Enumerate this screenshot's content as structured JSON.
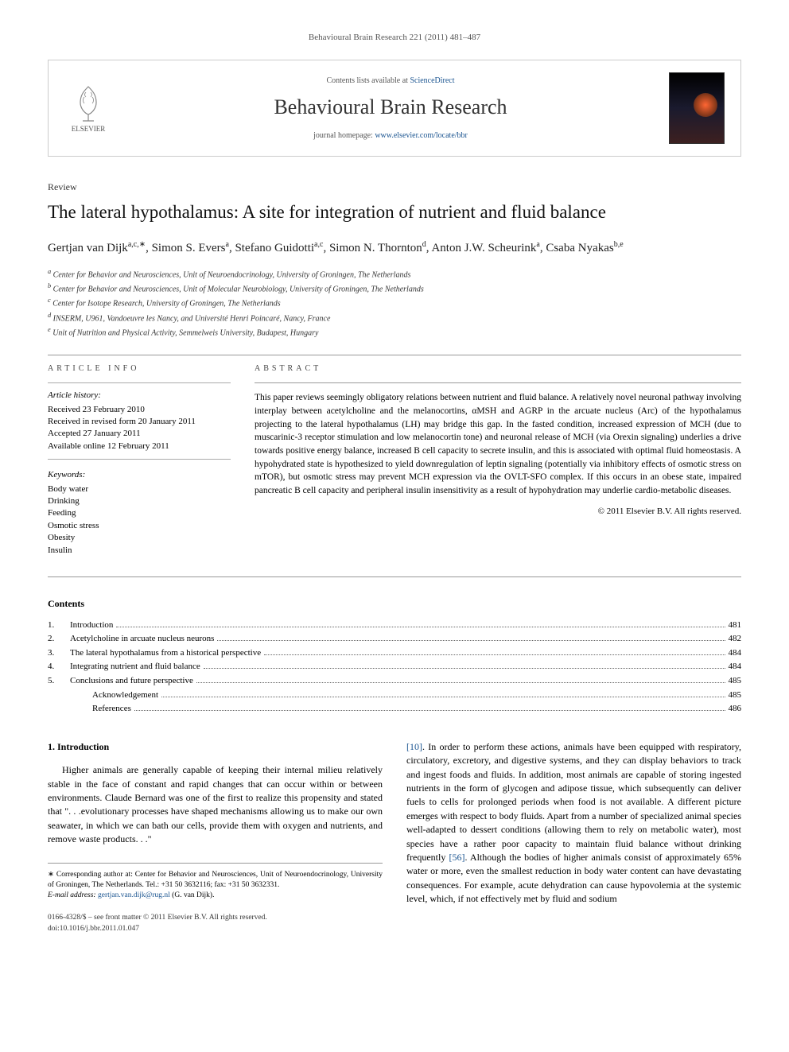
{
  "journal_ref": "Behavioural Brain Research 221 (2011) 481–487",
  "header": {
    "elsevier_label": "ELSEVIER",
    "contents_available": "Contents lists available at ",
    "sciencedirect": "ScienceDirect",
    "journal_title": "Behavioural Brain Research",
    "homepage_label": "journal homepage: ",
    "homepage_url": "www.elsevier.com/locate/bbr"
  },
  "article": {
    "type": "Review",
    "title": "The lateral hypothalamus: A site for integration of nutrient and fluid balance",
    "authors_html": "Gertjan van Dijk<sup>a,c,∗</sup>, Simon S. Evers<sup>a</sup>, Stefano Guidotti<sup>a,c</sup>, Simon N. Thornton<sup>d</sup>, Anton J.W. Scheurink<sup>a</sup>, Csaba Nyakas<sup>b,e</sup>",
    "affiliations": [
      "a Center for Behavior and Neurosciences, Unit of Neuroendocrinology, University of Groningen, The Netherlands",
      "b Center for Behavior and Neurosciences, Unit of Molecular Neurobiology, University of Groningen, The Netherlands",
      "c Center for Isotope Research, University of Groningen, The Netherlands",
      "d INSERM, U961, Vandoeuvre les Nancy, and Université Henri Poincaré, Nancy, France",
      "e Unit of Nutrition and Physical Activity, Semmelweis University, Budapest, Hungary"
    ]
  },
  "info": {
    "info_label": "ARTICLE INFO",
    "history_label": "Article history:",
    "history": [
      "Received 23 February 2010",
      "Received in revised form 20 January 2011",
      "Accepted 27 January 2011",
      "Available online 12 February 2011"
    ],
    "keywords_label": "Keywords:",
    "keywords": [
      "Body water",
      "Drinking",
      "Feeding",
      "Osmotic stress",
      "Obesity",
      "Insulin"
    ]
  },
  "abstract": {
    "label": "ABSTRACT",
    "text": "This paper reviews seemingly obligatory relations between nutrient and fluid balance. A relatively novel neuronal pathway involving interplay between acetylcholine and the melanocortins, αMSH and AGRP in the arcuate nucleus (Arc) of the hypothalamus projecting to the lateral hypothalamus (LH) may bridge this gap. In the fasted condition, increased expression of MCH (due to muscarinic-3 receptor stimulation and low melanocortin tone) and neuronal release of MCH (via Orexin signaling) underlies a drive towards positive energy balance, increased B cell capacity to secrete insulin, and this is associated with optimal fluid homeostasis. A hypohydrated state is hypothesized to yield downregulation of leptin signaling (potentially via inhibitory effects of osmotic stress on mTOR), but osmotic stress may prevent MCH expression via the OVLT-SFO complex. If this occurs in an obese state, impaired pancreatic B cell capacity and peripheral insulin insensitivity as a result of hypohydration may underlie cardio-metabolic diseases.",
    "copyright": "© 2011 Elsevier B.V. All rights reserved."
  },
  "contents": {
    "heading": "Contents",
    "items": [
      {
        "num": "1.",
        "title": "Introduction",
        "page": "481",
        "indent": 0
      },
      {
        "num": "2.",
        "title": "Acetylcholine in arcuate nucleus neurons",
        "page": "482",
        "indent": 0
      },
      {
        "num": "3.",
        "title": "The lateral hypothalamus from a historical perspective",
        "page": "484",
        "indent": 0
      },
      {
        "num": "4.",
        "title": "Integrating nutrient and fluid balance",
        "page": "484",
        "indent": 0
      },
      {
        "num": "5.",
        "title": "Conclusions and future perspective",
        "page": "485",
        "indent": 0
      },
      {
        "num": "",
        "title": "Acknowledgement",
        "page": "485",
        "indent": 1
      },
      {
        "num": "",
        "title": "References",
        "page": "486",
        "indent": 1
      }
    ]
  },
  "body": {
    "section_heading": "1. Introduction",
    "col1_p1": "Higher animals are generally capable of keeping their internal milieu relatively stable in the face of constant and rapid changes that can occur within or between environments. Claude Bernard was one of the first to realize this propensity and stated that \". . .evolutionary processes have shaped mechanisms allowing us to make our own seawater, in which we can bath our cells, provide them with oxygen and nutrients, and remove waste products. . .\"",
    "col2_p1": "[10]. In order to perform these actions, animals have been equipped with respiratory, circulatory, excretory, and digestive systems, and they can display behaviors to track and ingest foods and fluids. In addition, most animals are capable of storing ingested nutrients in the form of glycogen and adipose tissue, which subsequently can deliver fuels to cells for prolonged periods when food is not available. A different picture emerges with respect to body fluids. Apart from a number of specialized animal species well-adapted to dessert conditions (allowing them to rely on metabolic water), most species have a rather poor capacity to maintain fluid balance without drinking frequently [56]. Although the bodies of higher animals consist of approximately 65% water or more, even the smallest reduction in body water content can have devastating consequences. For example, acute dehydration can cause hypovolemia at the systemic level, which, if not effectively met by fluid and sodium"
  },
  "footnote": {
    "corr": "∗ Corresponding author at: Center for Behavior and Neurosciences, Unit of Neuroendocrinology, University of Groningen, The Netherlands. Tel.: +31 50 3632116; fax: +31 50 3632331.",
    "email_label": "E-mail address: ",
    "email": "gertjan.van.dijk@rug.nl",
    "email_who": " (G. van Dijk)."
  },
  "footer": {
    "line1": "0166-4328/$ – see front matter © 2011 Elsevier B.V. All rights reserved.",
    "line2": "doi:10.1016/j.bbr.2011.01.047"
  },
  "colors": {
    "link": "#1a5490",
    "text": "#000000",
    "muted": "#555555",
    "rule": "#999999"
  }
}
